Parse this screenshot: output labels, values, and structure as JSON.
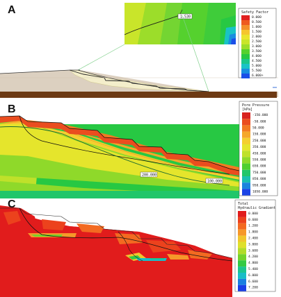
{
  "panels": [
    {
      "letter": "A",
      "legend": {
        "title_lines": [
          "Safety Factor"
        ],
        "ticks": [
          "0.000",
          "0.500",
          "1.000",
          "1.500",
          "2.000",
          "2.500",
          "3.000",
          "3.500",
          "4.000",
          "4.500",
          "5.000",
          "5.500",
          "6.000+"
        ],
        "colors": [
          "#e01f1f",
          "#ee5a1f",
          "#f3902a",
          "#f6c52e",
          "#eae52e",
          "#c9e52a",
          "#9cdd2a",
          "#55d12e",
          "#27c843",
          "#1bc68a",
          "#19c3c6",
          "#1a8ee0",
          "#1b4fe8"
        ]
      },
      "inset_label": "1.530"
    },
    {
      "letter": "B",
      "legend": {
        "title_lines": [
          "Pore Pressure",
          "[kPa]"
        ],
        "ticks": [
          "-150.000",
          "-50.000",
          "50.000",
          "150.000",
          "250.000",
          "350.000",
          "450.000",
          "550.000",
          "650.000",
          "750.000",
          "850.000",
          "950.000",
          "1050.000"
        ],
        "colors": [
          "#d8231f",
          "#ea4d1f",
          "#f27a22",
          "#f5a72a",
          "#f4cf2f",
          "#e5e52c",
          "#bfe12a",
          "#8fd92a",
          "#4fcf2f",
          "#21c66a",
          "#19c0b0",
          "#1a84de",
          "#1b43e6"
        ]
      },
      "contour_labels": [
        "200.000",
        "100.000"
      ]
    },
    {
      "letter": "C",
      "legend": {
        "title_lines": [
          "Total",
          "Hydraulic Gradient"
        ],
        "ticks": [
          "0.000",
          "0.600",
          "1.200",
          "1.800",
          "2.400",
          "3.000",
          "3.600",
          "4.200",
          "4.800",
          "5.400",
          "6.000",
          "6.600",
          "7.200"
        ],
        "colors": [
          "#e11c1c",
          "#ec421d",
          "#f36a21",
          "#f6982a",
          "#f1c62d",
          "#dfe02b",
          "#b2dc2a",
          "#74d32c",
          "#33ca44",
          "#1cc58f",
          "#19bdc7",
          "#1b7fe0",
          "#1b3fe6"
        ]
      }
    }
  ]
}
